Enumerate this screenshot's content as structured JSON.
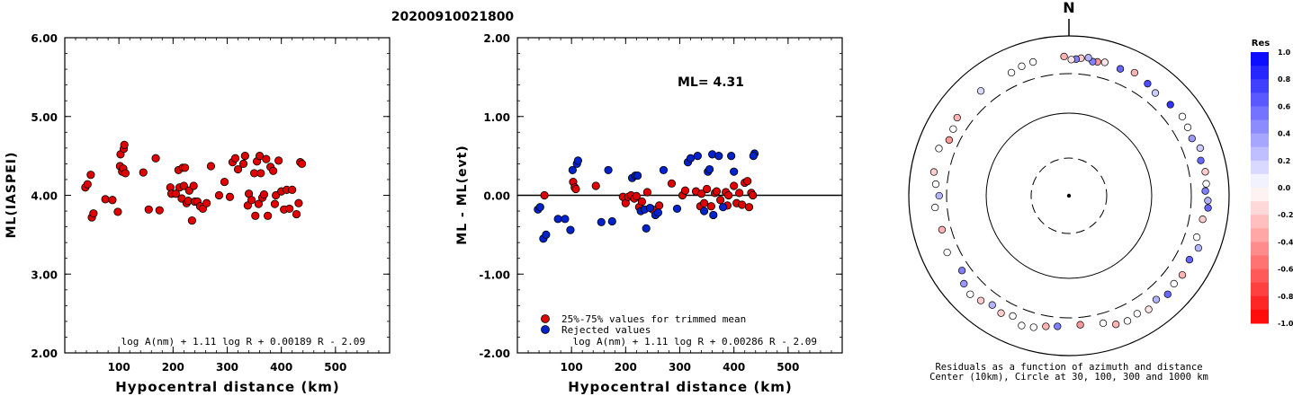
{
  "header": {
    "event_id": "20200910021800"
  },
  "left_panel": {
    "ylabel": "ML(IASPEI)",
    "xlabel": "Hypocentral distance (km)",
    "formula": "log A(nm) + 1.11 log R + 0.00189 R - 2.09"
  },
  "middle_panel": {
    "ylabel": "ML - ML(evt)",
    "xlabel": "Hypocentral distance (km)",
    "formula": "log A(nm) + 1.11 log R + 0.00286 R - 2.09",
    "ml_text": "ML= 4.31",
    "legend_trimmed": "25%-75% values for trimmed mean",
    "legend_rejected": "Rejected values"
  },
  "polar_panel": {
    "north_label": "N",
    "caption_line1": "Residuals as a function of azimuth and distance",
    "caption_line2": "Center (10km), Circle at 30, 100, 300 and 1000 km"
  },
  "colorbar": {
    "title": "Res",
    "tick_labels": [
      "1.0",
      "0.8",
      "0.6",
      "0.4",
      "0.2",
      "0.0",
      "-0.2",
      "-0.4",
      "-0.6",
      "-0.8",
      "-1.0"
    ]
  },
  "colors": {
    "trimmed": "#e00000",
    "rejected": "#0022cc",
    "positive_max": "#0000ff",
    "negative_max": "#ff0000"
  },
  "chart_data": [
    {
      "type": "scatter",
      "xlim": [
        0,
        600
      ],
      "ylim": [
        2.0,
        6.0
      ],
      "x_ticks": [
        "100",
        "200",
        "300",
        "400",
        "500"
      ],
      "y_ticks": [
        "2.00",
        "3.00",
        "4.00",
        "5.00",
        "6.00"
      ],
      "points": [
        [
          38,
          4.1
        ],
        [
          42,
          4.14
        ],
        [
          48,
          4.26
        ],
        [
          50,
          3.72
        ],
        [
          53,
          3.77
        ],
        [
          75,
          3.95
        ],
        [
          88,
          3.94
        ],
        [
          98,
          3.79
        ],
        [
          102,
          4.37
        ],
        [
          103,
          4.52
        ],
        [
          106,
          4.3
        ],
        [
          108,
          4.34
        ],
        [
          109,
          4.59
        ],
        [
          110,
          4.64
        ],
        [
          112,
          4.28
        ],
        [
          145,
          4.29
        ],
        [
          155,
          3.82
        ],
        [
          168,
          4.47
        ],
        [
          175,
          3.81
        ],
        [
          195,
          4.1
        ],
        [
          197,
          4.02
        ],
        [
          205,
          4.02
        ],
        [
          210,
          4.32
        ],
        [
          212,
          4.1
        ],
        [
          216,
          3.96
        ],
        [
          218,
          4.35
        ],
        [
          220,
          4.12
        ],
        [
          222,
          4.35
        ],
        [
          225,
          3.9
        ],
        [
          228,
          3.93
        ],
        [
          230,
          4.06
        ],
        [
          235,
          3.68
        ],
        [
          238,
          4.12
        ],
        [
          240,
          3.92
        ],
        [
          245,
          3.92
        ],
        [
          250,
          3.86
        ],
        [
          255,
          3.83
        ],
        [
          262,
          3.9
        ],
        [
          270,
          4.37
        ],
        [
          285,
          4.0
        ],
        [
          295,
          4.17
        ],
        [
          305,
          3.98
        ],
        [
          310,
          4.42
        ],
        [
          315,
          4.47
        ],
        [
          320,
          4.33
        ],
        [
          330,
          4.4
        ],
        [
          333,
          4.5
        ],
        [
          338,
          3.87
        ],
        [
          340,
          4.02
        ],
        [
          345,
          3.94
        ],
        [
          350,
          4.28
        ],
        [
          352,
          3.74
        ],
        [
          355,
          4.43
        ],
        [
          358,
          3.89
        ],
        [
          360,
          4.5
        ],
        [
          362,
          4.28
        ],
        [
          365,
          3.97
        ],
        [
          368,
          4.01
        ],
        [
          372,
          4.46
        ],
        [
          375,
          3.74
        ],
        [
          380,
          4.36
        ],
        [
          385,
          4.31
        ],
        [
          388,
          3.89
        ],
        [
          390,
          4.0
        ],
        [
          395,
          4.44
        ],
        [
          400,
          4.05
        ],
        [
          405,
          3.82
        ],
        [
          410,
          4.07
        ],
        [
          415,
          3.83
        ],
        [
          420,
          4.07
        ],
        [
          428,
          3.76
        ],
        [
          432,
          3.9
        ],
        [
          435,
          4.42
        ],
        [
          438,
          4.4
        ]
      ]
    },
    {
      "type": "scatter",
      "xlim": [
        0,
        600
      ],
      "ylim": [
        -2.0,
        2.0
      ],
      "x_ticks": [
        "100",
        "200",
        "300",
        "400",
        "500"
      ],
      "y_ticks": [
        "-2.00",
        "-1.00",
        "0.00",
        "1.00",
        "2.00"
      ],
      "series": [
        {
          "name": "25%-75% values for trimmed mean",
          "points": [
            [
              50,
              0.0
            ],
            [
              103,
              0.17
            ],
            [
              106,
              0.1
            ],
            [
              108,
              0.08
            ],
            [
              145,
              0.12
            ],
            [
              195,
              -0.02
            ],
            [
              200,
              -0.1
            ],
            [
              205,
              -0.02
            ],
            [
              210,
              0.0
            ],
            [
              216,
              -0.04
            ],
            [
              220,
              -0.01
            ],
            [
              225,
              -0.15
            ],
            [
              230,
              -0.08
            ],
            [
              240,
              0.04
            ],
            [
              250,
              -0.18
            ],
            [
              262,
              -0.13
            ],
            [
              285,
              0.15
            ],
            [
              305,
              0.0
            ],
            [
              310,
              0.06
            ],
            [
              330,
              0.05
            ],
            [
              338,
              -0.14
            ],
            [
              340,
              0.02
            ],
            [
              345,
              -0.1
            ],
            [
              350,
              0.08
            ],
            [
              358,
              -0.14
            ],
            [
              365,
              0.03
            ],
            [
              368,
              0.05
            ],
            [
              375,
              -0.06
            ],
            [
              385,
              0.04
            ],
            [
              388,
              -0.13
            ],
            [
              390,
              0.0
            ],
            [
              400,
              0.12
            ],
            [
              405,
              -0.1
            ],
            [
              410,
              0.03
            ],
            [
              415,
              -0.12
            ],
            [
              420,
              0.16
            ],
            [
              425,
              0.18
            ],
            [
              428,
              -0.15
            ],
            [
              432,
              0.03
            ],
            [
              435,
              0.0
            ]
          ]
        },
        {
          "name": "Rejected values",
          "points": [
            [
              38,
              -0.18
            ],
            [
              42,
              -0.15
            ],
            [
              48,
              -0.55
            ],
            [
              53,
              -0.5
            ],
            [
              75,
              -0.3
            ],
            [
              88,
              -0.3
            ],
            [
              98,
              -0.44
            ],
            [
              102,
              0.32
            ],
            [
              110,
              0.4
            ],
            [
              112,
              0.44
            ],
            [
              155,
              -0.34
            ],
            [
              168,
              0.32
            ],
            [
              175,
              -0.33
            ],
            [
              212,
              0.22
            ],
            [
              218,
              0.25
            ],
            [
              222,
              0.25
            ],
            [
              228,
              -0.2
            ],
            [
              235,
              -0.18
            ],
            [
              238,
              -0.42
            ],
            [
              245,
              -0.16
            ],
            [
              255,
              -0.25
            ],
            [
              260,
              -0.22
            ],
            [
              270,
              0.32
            ],
            [
              295,
              -0.17
            ],
            [
              315,
              0.42
            ],
            [
              320,
              0.47
            ],
            [
              333,
              0.5
            ],
            [
              345,
              -0.2
            ],
            [
              352,
              0.3
            ],
            [
              355,
              0.33
            ],
            [
              360,
              0.52
            ],
            [
              362,
              -0.25
            ],
            [
              372,
              0.5
            ],
            [
              380,
              -0.15
            ],
            [
              395,
              0.5
            ],
            [
              400,
              0.3
            ],
            [
              438,
              0.53
            ],
            [
              436,
              0.5
            ]
          ]
        }
      ]
    },
    {
      "type": "scatter",
      "polar": true,
      "rings_km": [
        30,
        100,
        300,
        1000
      ],
      "center_km": 10,
      "colorbar_range": [
        -1.0,
        1.0
      ],
      "points": [
        [
          345,
          505,
          0.0
        ],
        [
          340,
          495,
          0.0
        ],
        [
          335,
          465,
          0.0
        ],
        [
          320,
          480,
          0.15
        ],
        [
          305,
          470,
          -0.3
        ],
        [
          300,
          430,
          0.0
        ],
        [
          295,
          410,
          -0.4
        ],
        [
          290,
          500,
          0.0
        ],
        [
          280,
          480,
          -0.2
        ],
        [
          275,
          430,
          0.0
        ],
        [
          270,
          380,
          0.3
        ],
        [
          265,
          440,
          0.0
        ],
        [
          255,
          400,
          -0.3
        ],
        [
          245,
          440,
          0.0
        ],
        [
          235,
          390,
          0.5
        ],
        [
          230,
          480,
          0.4
        ],
        [
          225,
          520,
          0.0
        ],
        [
          220,
          480,
          -0.2
        ],
        [
          215,
          430,
          0.3
        ],
        [
          210,
          460,
          -0.2
        ],
        [
          205,
          420,
          0.0
        ],
        [
          200,
          500,
          0.0
        ],
        [
          195,
          470,
          0.0
        ],
        [
          190,
          420,
          -0.3
        ],
        [
          185,
          400,
          0.5
        ],
        [
          175,
          380,
          -0.4
        ],
        [
          165,
          410,
          0.0
        ],
        [
          160,
          480,
          -0.3
        ],
        [
          155,
          500,
          0.0
        ],
        [
          150,
          470,
          0.0
        ],
        [
          145,
          510,
          -0.1
        ],
        [
          140,
          460,
          0.3
        ],
        [
          135,
          520,
          0.6
        ],
        [
          130,
          480,
          0.0
        ],
        [
          125,
          500,
          -0.3
        ],
        [
          118,
          470,
          0.6
        ],
        [
          112,
          520,
          0.3
        ],
        [
          108,
          440,
          0.0
        ],
        [
          100,
          460,
          -0.2
        ],
        [
          95,
          520,
          0.6
        ],
        [
          92,
          510,
          0.3
        ],
        [
          88,
          470,
          0.5
        ],
        [
          85,
          490,
          0.0
        ],
        [
          80,
          500,
          -0.2
        ],
        [
          75,
          470,
          0.6
        ],
        [
          70,
          520,
          0.2
        ],
        [
          65,
          460,
          0.4
        ],
        [
          60,
          480,
          0.0
        ],
        [
          55,
          500,
          0.0
        ],
        [
          48,
          470,
          0.8
        ],
        [
          40,
          440,
          0.2
        ],
        [
          35,
          480,
          0.7
        ],
        [
          28,
          520,
          -0.3
        ],
        [
          22,
          480,
          0.6
        ],
        [
          15,
          500,
          -0.1
        ],
        [
          12,
          480,
          -0.4
        ],
        [
          10,
          470,
          0.5
        ],
        [
          8,
          520,
          0.3
        ],
        [
          5,
          500,
          -0.2
        ],
        [
          3,
          480,
          0.5
        ],
        [
          1,
          470,
          -0.1
        ],
        [
          358,
          520,
          -0.3
        ]
      ]
    }
  ]
}
